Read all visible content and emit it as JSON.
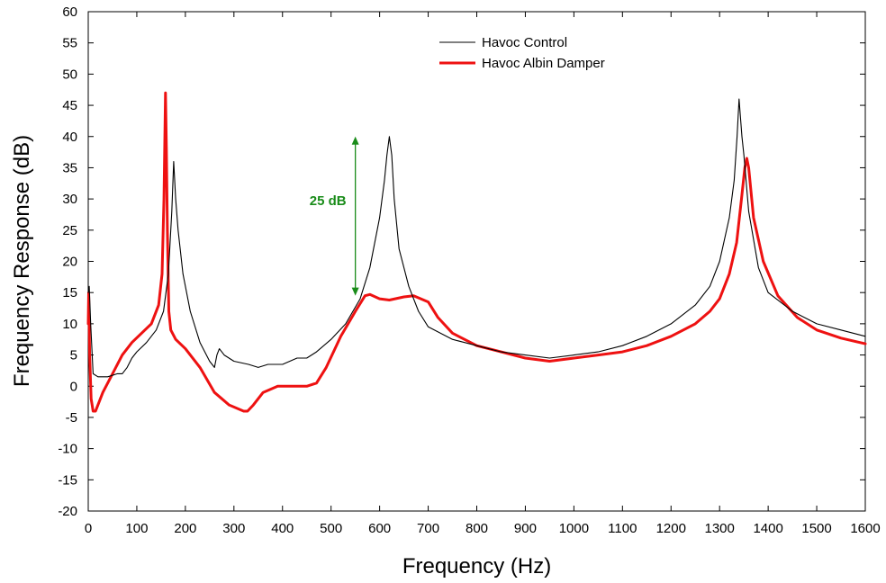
{
  "chart_data": {
    "type": "line",
    "xlabel": "Frequency (Hz)",
    "ylabel": "Frequency Response (dB)",
    "xlim": [
      0,
      1600
    ],
    "ylim": [
      -20,
      60
    ],
    "xticks": [
      0,
      100,
      200,
      300,
      400,
      500,
      600,
      700,
      800,
      900,
      1000,
      1100,
      1200,
      1300,
      1400,
      1500,
      1600
    ],
    "yticks": [
      -20,
      -15,
      -10,
      -5,
      0,
      5,
      10,
      15,
      20,
      25,
      30,
      35,
      40,
      45,
      50,
      55,
      60
    ],
    "grid": false,
    "legend_position": "top-center",
    "series": [
      {
        "name": "Havoc Control",
        "color": "#000000",
        "x": [
          0,
          2,
          5,
          10,
          20,
          40,
          60,
          70,
          80,
          90,
          100,
          120,
          140,
          155,
          165,
          172,
          176,
          180,
          185,
          195,
          210,
          230,
          250,
          260,
          265,
          270,
          280,
          300,
          330,
          350,
          370,
          400,
          430,
          450,
          470,
          500,
          530,
          560,
          580,
          600,
          610,
          615,
          620,
          625,
          630,
          640,
          660,
          680,
          700,
          750,
          800,
          850,
          900,
          950,
          1000,
          1050,
          1100,
          1150,
          1200,
          1250,
          1280,
          1300,
          1320,
          1330,
          1336,
          1340,
          1343,
          1346,
          1350,
          1360,
          1380,
          1400,
          1450,
          1500,
          1550,
          1600
        ],
        "y": [
          15,
          16,
          10,
          2,
          1.5,
          1.5,
          2,
          2,
          3,
          4.5,
          5.5,
          7,
          9,
          12,
          18,
          28,
          36,
          30,
          25,
          18,
          12,
          7,
          4,
          3,
          5,
          6,
          5,
          4,
          3.5,
          3,
          3.5,
          3.5,
          4.5,
          4.5,
          5.5,
          7.5,
          10,
          14,
          19,
          27,
          33,
          37,
          40,
          37,
          30,
          22,
          16,
          12,
          9.5,
          7.5,
          6.5,
          5.5,
          5,
          4.5,
          5,
          5.5,
          6.5,
          8,
          10,
          13,
          16,
          20,
          27,
          33,
          40,
          46,
          43,
          40,
          37,
          28,
          19,
          15,
          12,
          10,
          9,
          8
        ]
      },
      {
        "name": "Havoc Albin Damper",
        "color": "#ee1111",
        "x": [
          0,
          1,
          3,
          6,
          10,
          15,
          20,
          30,
          50,
          70,
          90,
          110,
          130,
          145,
          152,
          156,
          159,
          161,
          163,
          166,
          170,
          180,
          200,
          230,
          260,
          290,
          320,
          328,
          340,
          360,
          390,
          420,
          450,
          470,
          490,
          520,
          550,
          570,
          580,
          600,
          620,
          650,
          670,
          700,
          720,
          750,
          800,
          850,
          900,
          950,
          1000,
          1050,
          1100,
          1150,
          1200,
          1250,
          1280,
          1300,
          1320,
          1335,
          1345,
          1352,
          1356,
          1360,
          1370,
          1390,
          1420,
          1460,
          1500,
          1550,
          1600
        ],
        "y": [
          10,
          15,
          5,
          -2,
          -4,
          -4,
          -3,
          -1,
          2,
          5,
          7,
          8.5,
          10,
          13,
          18,
          30,
          47,
          38,
          25,
          12,
          9,
          7.5,
          6,
          3,
          -1,
          -3,
          -4,
          -4,
          -3,
          -1,
          0,
          0,
          0,
          0.5,
          3,
          8,
          12,
          14.5,
          14.7,
          14,
          13.8,
          14.3,
          14.5,
          13.5,
          11,
          8.5,
          6.5,
          5.5,
          4.5,
          4,
          4.5,
          5,
          5.5,
          6.5,
          8,
          10,
          12,
          14,
          18,
          23,
          30,
          35,
          36.5,
          35,
          27,
          20,
          14.5,
          11,
          9,
          7.7,
          6.8
        ]
      }
    ],
    "annotations": [
      {
        "text": "25 dB",
        "x": 550,
        "y_from": 14.5,
        "y_to": 40,
        "color": "#1a8c1a"
      }
    ]
  }
}
